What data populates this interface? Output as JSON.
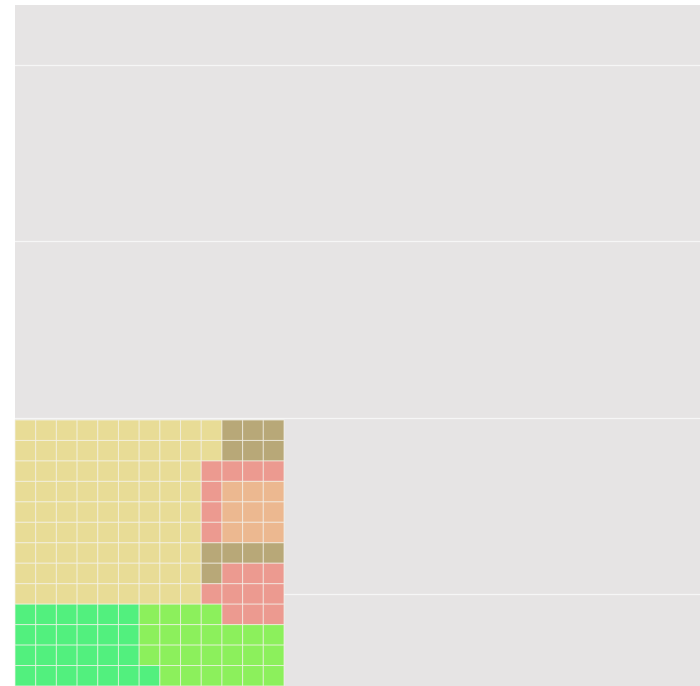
{
  "grid": {
    "cells": [
      [
        "#e8dc96",
        "#e8dc96",
        "#e8dc96",
        "#e8dc96",
        "#e8dc96",
        "#e8dc96",
        "#e8dc96",
        "#e8dc96",
        "#e8dc96",
        "#e8dc96",
        "#b8a878",
        "#b8a878",
        "#b8a878"
      ],
      [
        "#e8dc96",
        "#e8dc96",
        "#e8dc96",
        "#e8dc96",
        "#e8dc96",
        "#e8dc96",
        "#e8dc96",
        "#e8dc96",
        "#e8dc96",
        "#e8dc96",
        "#b8a878",
        "#b8a878",
        "#b8a878"
      ],
      [
        "#e8dc96",
        "#e8dc96",
        "#e8dc96",
        "#e8dc96",
        "#e8dc96",
        "#e8dc96",
        "#e8dc96",
        "#e8dc96",
        "#e8dc96",
        "#ec9a90",
        "#ec9a90",
        "#ec9a90",
        "#ec9a90"
      ],
      [
        "#e8dc96",
        "#e8dc96",
        "#e8dc96",
        "#e8dc96",
        "#e8dc96",
        "#e8dc96",
        "#e8dc96",
        "#e8dc96",
        "#e8dc96",
        "#ec9a90",
        "#ecb890",
        "#ecb890",
        "#ecb890"
      ],
      [
        "#e8dc96",
        "#e8dc96",
        "#e8dc96",
        "#e8dc96",
        "#e8dc96",
        "#e8dc96",
        "#e8dc96",
        "#e8dc96",
        "#e8dc96",
        "#ec9a90",
        "#ecb890",
        "#ecb890",
        "#ecb890"
      ],
      [
        "#e8dc96",
        "#e8dc96",
        "#e8dc96",
        "#e8dc96",
        "#e8dc96",
        "#e8dc96",
        "#e8dc96",
        "#e8dc96",
        "#e8dc96",
        "#ec9a90",
        "#ecb890",
        "#ecb890",
        "#ecb890"
      ],
      [
        "#e8dc96",
        "#e8dc96",
        "#e8dc96",
        "#e8dc96",
        "#e8dc96",
        "#e8dc96",
        "#e8dc96",
        "#e8dc96",
        "#e8dc96",
        "#b8a878",
        "#b8a878",
        "#b8a878",
        "#b8a878"
      ],
      [
        "#e8dc96",
        "#e8dc96",
        "#e8dc96",
        "#e8dc96",
        "#e8dc96",
        "#e8dc96",
        "#e8dc96",
        "#e8dc96",
        "#e8dc96",
        "#b8a878",
        "#ec9a90",
        "#ec9a90",
        "#ec9a90"
      ],
      [
        "#e8dc96",
        "#e8dc96",
        "#e8dc96",
        "#e8dc96",
        "#e8dc96",
        "#e8dc96",
        "#e8dc96",
        "#e8dc96",
        "#e8dc96",
        "#ec9a90",
        "#ec9a90",
        "#ec9a90",
        "#ec9a90"
      ],
      [
        "#52f07e",
        "#52f07e",
        "#52f07e",
        "#52f07e",
        "#52f07e",
        "#52f07e",
        "#8cf05c",
        "#8cf05c",
        "#8cf05c",
        "#8cf05c",
        "#ec9a90",
        "#ec9a90",
        "#ec9a90"
      ],
      [
        "#52f07e",
        "#52f07e",
        "#52f07e",
        "#52f07e",
        "#52f07e",
        "#52f07e",
        "#8cf05c",
        "#8cf05c",
        "#8cf05c",
        "#8cf05c",
        "#8cf05c",
        "#8cf05c",
        "#8cf05c"
      ],
      [
        "#52f07e",
        "#52f07e",
        "#52f07e",
        "#52f07e",
        "#52f07e",
        "#52f07e",
        "#8cf05c",
        "#8cf05c",
        "#8cf05c",
        "#8cf05c",
        "#8cf05c",
        "#8cf05c",
        "#8cf05c"
      ],
      [
        "#52f07e",
        "#52f07e",
        "#52f07e",
        "#52f07e",
        "#52f07e",
        "#52f07e",
        "#52f07e",
        "#8cf05c",
        "#8cf05c",
        "#8cf05c",
        "#8cf05c",
        "#8cf05c",
        "#8cf05c"
      ]
    ]
  }
}
